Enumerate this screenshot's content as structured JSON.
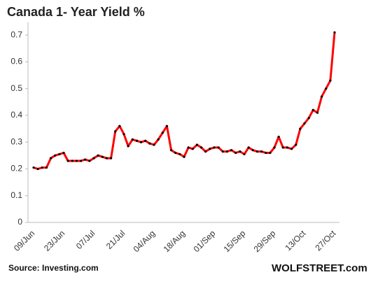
{
  "chart_data": {
    "type": "line",
    "title": "Canada  1- Year Yield %",
    "source": "Source: Investing.com",
    "credit": "WOLFSTREET.com",
    "categories": [
      "09/Jun",
      null,
      null,
      null,
      null,
      null,
      null,
      "23/Jun",
      null,
      null,
      null,
      null,
      null,
      null,
      "07/Jul",
      null,
      null,
      null,
      null,
      null,
      null,
      "21/Jul",
      null,
      null,
      null,
      null,
      null,
      null,
      "04/Aug",
      null,
      null,
      null,
      null,
      null,
      null,
      "18/Aug",
      null,
      null,
      null,
      null,
      null,
      null,
      "01/Sep",
      null,
      null,
      null,
      null,
      null,
      null,
      "15/Sep",
      null,
      null,
      null,
      null,
      null,
      null,
      "29/Sep",
      null,
      null,
      null,
      null,
      null,
      null,
      "13/Oct",
      null,
      null,
      null,
      null,
      null,
      null,
      "27/Oct"
    ],
    "series": [
      {
        "name": "Canada 1-Year Yield",
        "color": "#ff0000",
        "marker_color": "#000000",
        "values": [
          0.205,
          0.2,
          0.205,
          0.205,
          0.24,
          0.25,
          0.255,
          0.26,
          0.23,
          0.23,
          0.23,
          0.23,
          0.235,
          0.23,
          0.24,
          0.25,
          0.245,
          0.24,
          0.24,
          0.34,
          0.36,
          0.33,
          0.285,
          0.31,
          0.305,
          0.3,
          0.305,
          0.295,
          0.29,
          0.31,
          0.335,
          0.36,
          0.27,
          0.26,
          0.255,
          0.245,
          0.28,
          0.275,
          0.29,
          0.28,
          0.265,
          0.275,
          0.28,
          0.28,
          0.265,
          0.265,
          0.27,
          0.26,
          0.265,
          0.255,
          0.28,
          0.27,
          0.265,
          0.265,
          0.26,
          0.26,
          0.28,
          0.32,
          0.28,
          0.28,
          0.275,
          0.29,
          0.35,
          0.37,
          0.39,
          0.42,
          0.41,
          0.47,
          0.5,
          0.53,
          0.71
        ]
      }
    ],
    "ylim": [
      0,
      0.75
    ],
    "yticks": [
      0,
      0.1,
      0.2,
      0.3,
      0.4,
      0.5,
      0.6,
      0.7
    ],
    "grid": false
  }
}
